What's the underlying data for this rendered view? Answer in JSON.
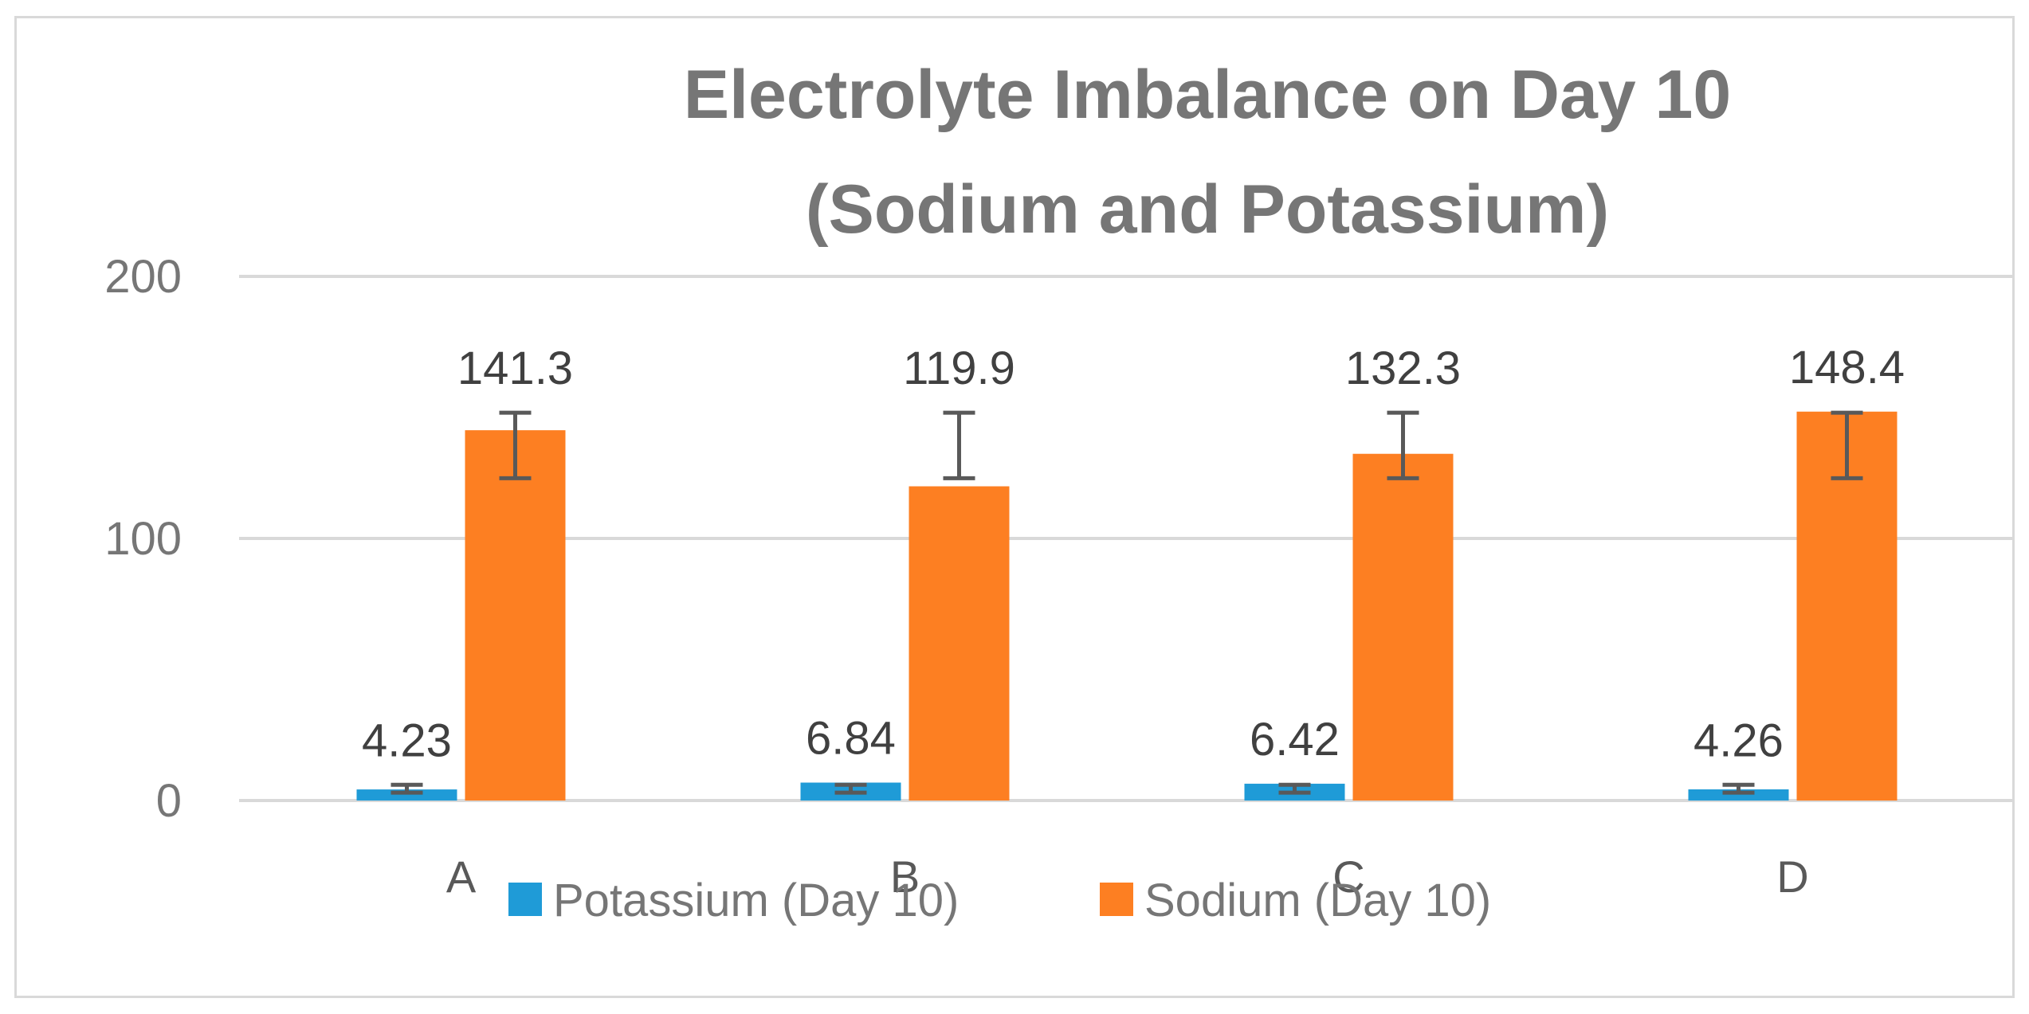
{
  "chart_data": {
    "type": "bar",
    "title": [
      "Electrolyte Imbalance on Day 10",
      "(Sodium and Potassium)"
    ],
    "categories": [
      "A",
      "B",
      "C",
      "D"
    ],
    "ylim": [
      0,
      200
    ],
    "yticks": [
      0,
      100,
      200
    ],
    "grid": true,
    "legend_position": "bottom",
    "series": [
      {
        "name": "Potassium (Day 10)",
        "color": "#1f9bd7",
        "values": [
          4.23,
          6.84,
          6.42,
          4.26
        ],
        "labels": [
          "4.23",
          "6.84",
          "6.42",
          "4.26"
        ],
        "error_low": [
          3,
          3,
          3,
          3
        ],
        "error_high": [
          6,
          6,
          6,
          6
        ]
      },
      {
        "name": "Sodium (Day 10)",
        "color": "#fd7f22",
        "values": [
          141.3,
          119.9,
          132.3,
          148.4
        ],
        "labels": [
          "141.3",
          "119.9",
          "132.3",
          "148.4"
        ],
        "error_low": [
          123,
          123,
          123,
          123
        ],
        "error_high": [
          148,
          148,
          148,
          148
        ]
      }
    ]
  }
}
